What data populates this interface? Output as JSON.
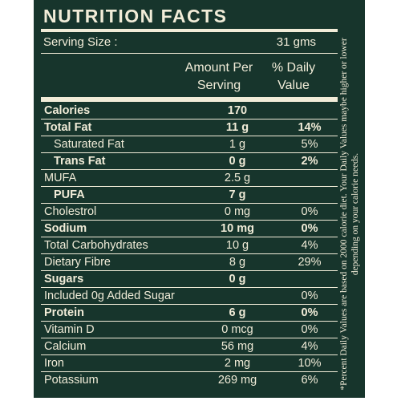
{
  "title": "NUTRITION FACTS",
  "serving": {
    "label": "Serving Size :",
    "value": "31 gms"
  },
  "headers": {
    "amount_line1": "Amount Per",
    "amount_line2": "Serving",
    "dv_line1": "% Daily",
    "dv_line2": "Value"
  },
  "rows": [
    {
      "name": "Calories",
      "amount": "170",
      "dv": ""
    },
    {
      "name": "Total Fat",
      "amount": "11 g",
      "dv": "14%"
    },
    {
      "name": "Saturated Fat",
      "amount": "1 g",
      "dv": "5%"
    },
    {
      "name": "Trans Fat",
      "amount": "0 g",
      "dv": "2%"
    },
    {
      "name": "MUFA",
      "amount": "2.5 g",
      "dv": ""
    },
    {
      "name": "PUFA",
      "amount": "7 g",
      "dv": ""
    },
    {
      "name": "Cholestrol",
      "amount": "0 mg",
      "dv": "0%"
    },
    {
      "name": "Sodium",
      "amount": "10 mg",
      "dv": "0%"
    },
    {
      "name": "Total Carbohydrates",
      "amount": "10 g",
      "dv": "4%"
    },
    {
      "name": "Dietary Fibre",
      "amount": "8 g",
      "dv": "29%"
    },
    {
      "name": "Sugars",
      "amount": "0 g",
      "dv": ""
    },
    {
      "name": "Included 0g Added Sugar",
      "amount": "",
      "dv": "0%"
    },
    {
      "name": "Protein",
      "amount": "6 g",
      "dv": "0%"
    },
    {
      "name": "Vitamin D",
      "amount": "0 mcg",
      "dv": "0%"
    },
    {
      "name": "Calcium",
      "amount": "56 mg",
      "dv": "4%"
    },
    {
      "name": "Iron",
      "amount": "2 mg",
      "dv": "10%"
    },
    {
      "name": "Potassium",
      "amount": "269 mg",
      "dv": "6%"
    }
  ],
  "footnote": "*Percent Daily Values are based on 2000 calorie diet. Your Daily Values maybe higher or lower depending on your calorie needs.",
  "colors": {
    "panel": "#17352c",
    "text": "#f1ecd8",
    "background": "#ffffff"
  }
}
